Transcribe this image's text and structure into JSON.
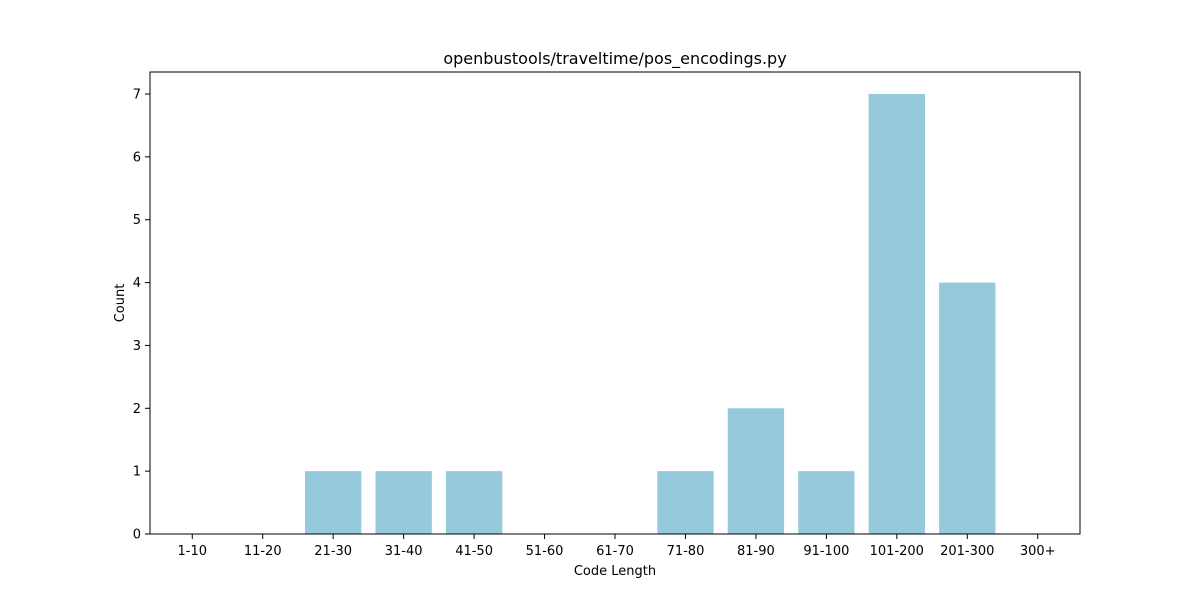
{
  "chart_data": {
    "type": "bar",
    "title": "openbustools/traveltime/pos_encodings.py",
    "xlabel": "Code Length",
    "ylabel": "Count",
    "categories": [
      "1-10",
      "11-20",
      "21-30",
      "31-40",
      "41-50",
      "51-60",
      "61-70",
      "71-80",
      "81-90",
      "91-100",
      "101-200",
      "201-300",
      "300+"
    ],
    "values": [
      0,
      0,
      1,
      1,
      1,
      0,
      0,
      1,
      2,
      1,
      7,
      4,
      0
    ],
    "yticks": [
      0,
      1,
      2,
      3,
      4,
      5,
      6,
      7
    ],
    "ylim": [
      0,
      7.35
    ],
    "bar_color": "#96c9dc",
    "grid": false,
    "legend": false
  }
}
